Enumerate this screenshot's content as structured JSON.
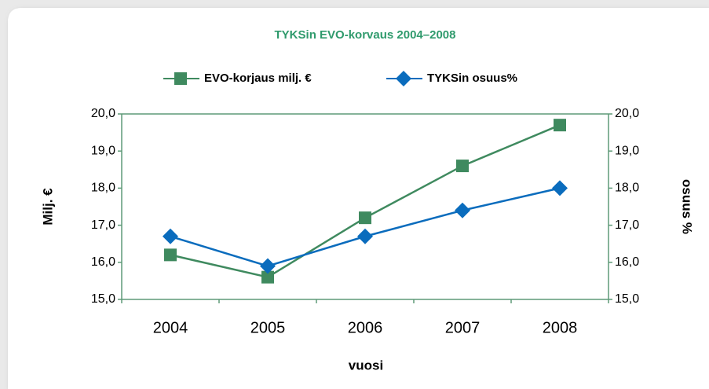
{
  "chart_data": {
    "type": "line",
    "title": "TYKSin EVO-korvaus 2004–2008",
    "categories": [
      "2004",
      "2005",
      "2006",
      "2007",
      "2008"
    ],
    "series": [
      {
        "name": "EVO-korjaus milj. €",
        "color": "#3f8a5f",
        "marker": "square",
        "values": [
          16.2,
          15.6,
          17.2,
          18.6,
          19.7
        ]
      },
      {
        "name": "TYKSin osuus%",
        "color": "#0a6cbd",
        "marker": "diamond",
        "axis": "y2",
        "values": [
          16.7,
          15.9,
          16.7,
          17.4,
          18.0
        ]
      }
    ],
    "xlabel": "vuosi",
    "ylabel": "Milj. €",
    "y2label": "osuus %",
    "ylim": [
      15,
      20
    ],
    "yticks": [
      {
        "value": 15,
        "label": "15,0"
      },
      {
        "value": 16,
        "label": "16,0"
      },
      {
        "value": 17,
        "label": "17,0"
      },
      {
        "value": 18,
        "label": "18,0"
      },
      {
        "value": 19,
        "label": "19,0"
      },
      {
        "value": 20,
        "label": "20,0"
      }
    ],
    "y2lim": [
      15,
      20
    ],
    "y2ticks": [
      {
        "value": 15,
        "label": "15,0"
      },
      {
        "value": 16,
        "label": "16,0"
      },
      {
        "value": 17,
        "label": "17,0"
      },
      {
        "value": 18,
        "label": "18,0"
      },
      {
        "value": 19,
        "label": "19,0"
      },
      {
        "value": 20,
        "label": "20,0"
      }
    ],
    "legend": "top"
  }
}
